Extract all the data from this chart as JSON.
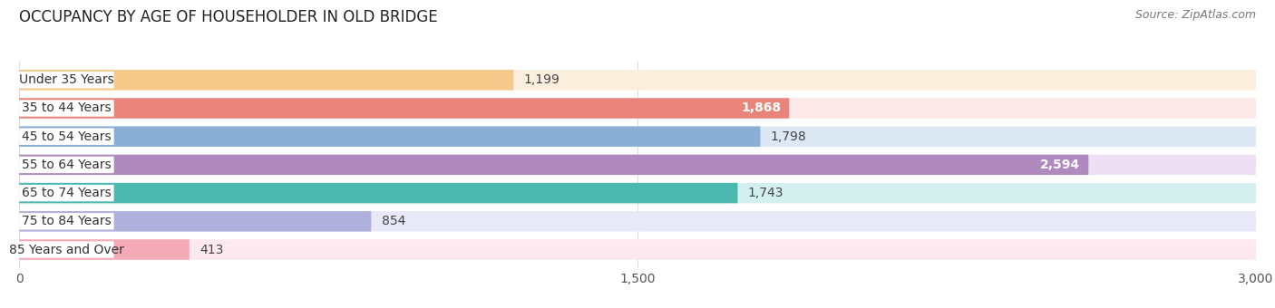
{
  "title": "OCCUPANCY BY AGE OF HOUSEHOLDER IN OLD BRIDGE",
  "source": "Source: ZipAtlas.com",
  "categories": [
    "Under 35 Years",
    "35 to 44 Years",
    "45 to 54 Years",
    "55 to 64 Years",
    "65 to 74 Years",
    "75 to 84 Years",
    "85 Years and Over"
  ],
  "values": [
    1199,
    1868,
    1798,
    2594,
    1743,
    854,
    413
  ],
  "bar_colors": [
    "#f5c98a",
    "#e8847a",
    "#8bafd4",
    "#b08abf",
    "#4db8b0",
    "#b0b0dc",
    "#f5aab8"
  ],
  "bar_bg_colors": [
    "#fceedd",
    "#fce8e6",
    "#dde8f5",
    "#ede0f5",
    "#d4f0ee",
    "#e8e8f8",
    "#fce8ee"
  ],
  "value_inside": [
    false,
    true,
    false,
    true,
    false,
    false,
    false
  ],
  "xlim": [
    0,
    3000
  ],
  "xticks": [
    0,
    1500,
    3000
  ],
  "xtick_labels": [
    "0",
    "1,500",
    "3,000"
  ],
  "title_fontsize": 12,
  "source_fontsize": 9,
  "label_fontsize": 10,
  "value_fontsize": 10,
  "tick_fontsize": 10,
  "background_color": "#ffffff",
  "pill_color": "#ffffff",
  "grid_color": "#dddddd"
}
